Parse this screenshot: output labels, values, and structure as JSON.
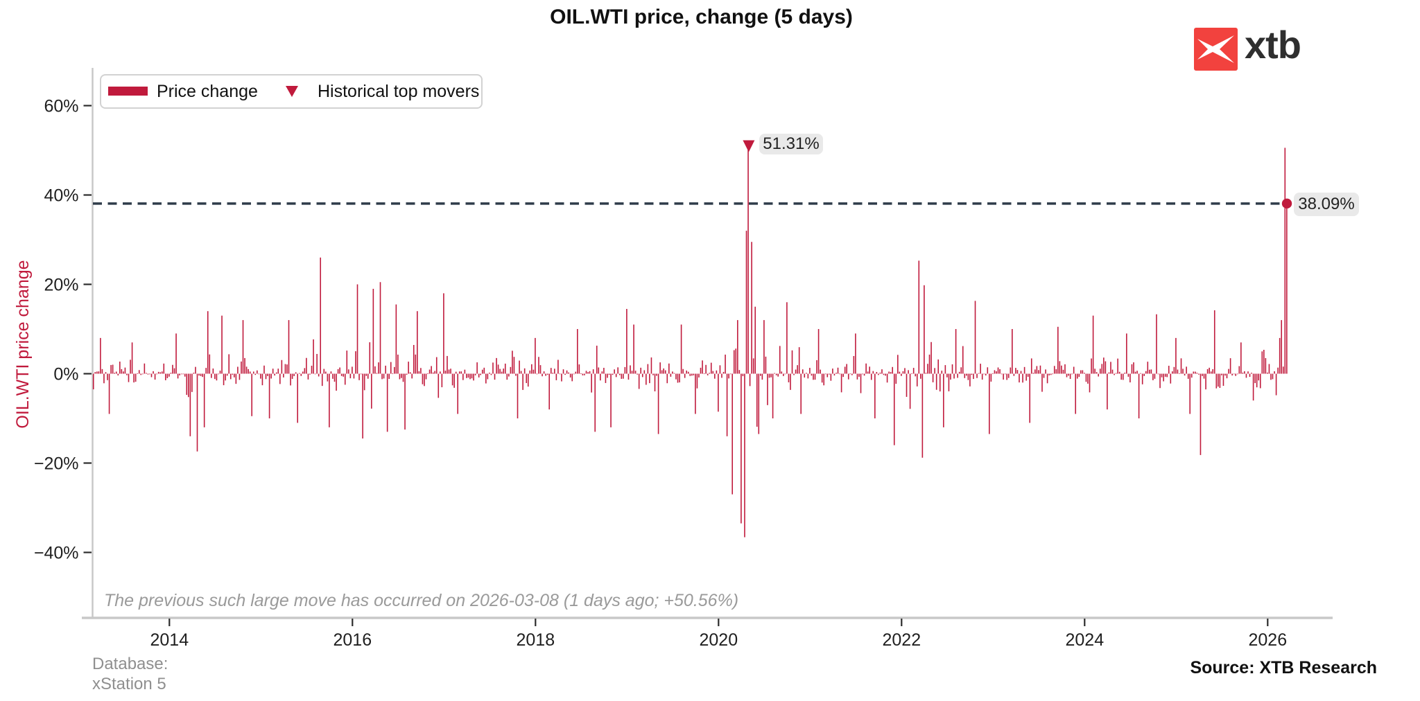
{
  "logo": {
    "brand": "xtb",
    "square_color": "#f2423e",
    "text_color": "#2f2f2f"
  },
  "footer": {
    "database_line1": "Database:",
    "database_line2": "xStation 5",
    "source": "Source: XTB Research"
  },
  "chart_data": {
    "type": "bar",
    "title": "OIL.WTI price, change (5 days)",
    "ylabel": "OIL.WTI price change",
    "xlabel": "",
    "series_name": "Price change",
    "top_movers_name": "Historical top movers",
    "unit": "%",
    "grid": "off",
    "legend_position": "upper-left",
    "x_ticks": [
      2014,
      2016,
      2018,
      2020,
      2022,
      2024,
      2026
    ],
    "y_ticks": [
      {
        "v": 60,
        "label": "60%"
      },
      {
        "v": 40,
        "label": "40%"
      },
      {
        "v": 20,
        "label": "20%"
      },
      {
        "v": 0,
        "label": "0%"
      },
      {
        "v": -20,
        "label": "−20%"
      },
      {
        "v": -40,
        "label": "−40%"
      }
    ],
    "x_range_years": [
      2013.17,
      2026.22
    ],
    "ylim": [
      -55,
      68
    ],
    "top_mover_marker": {
      "x": 2020.33,
      "value": 51.31,
      "label": "51.31%"
    },
    "current_point": {
      "x": 2026.21,
      "value": 38.09,
      "label": "38.09%"
    },
    "reference_line": {
      "value": 38.09,
      "style": "dashed"
    },
    "note": "The previous such large move has occurred on 2026-03-08 (1 days ago; +50.56%)",
    "previous_large_move": {
      "date": "2026-03-08",
      "days_ago": 1,
      "value_pct": 50.56
    },
    "key_points": [
      [
        2013.25,
        8
      ],
      [
        2013.35,
        -9
      ],
      [
        2013.6,
        7
      ],
      [
        2014.07,
        9
      ],
      [
        2014.23,
        -14
      ],
      [
        2014.3,
        -17.4
      ],
      [
        2014.38,
        -12
      ],
      [
        2014.42,
        14
      ],
      [
        2014.57,
        13
      ],
      [
        2014.8,
        12
      ],
      [
        2014.9,
        -9.5
      ],
      [
        2015.1,
        -10
      ],
      [
        2015.3,
        12
      ],
      [
        2015.4,
        -11
      ],
      [
        2015.66,
        26
      ],
      [
        2015.74,
        -12
      ],
      [
        2016.05,
        20
      ],
      [
        2016.12,
        -14.5
      ],
      [
        2016.22,
        19
      ],
      [
        2016.3,
        20.5
      ],
      [
        2016.38,
        -13
      ],
      [
        2016.48,
        15.5
      ],
      [
        2016.58,
        -12.5
      ],
      [
        2016.7,
        14
      ],
      [
        2017.0,
        18
      ],
      [
        2017.15,
        -9
      ],
      [
        2017.8,
        -10
      ],
      [
        2018.0,
        8
      ],
      [
        2018.15,
        -8
      ],
      [
        2018.45,
        10
      ],
      [
        2018.65,
        -13
      ],
      [
        2018.82,
        -12
      ],
      [
        2019.0,
        14.5
      ],
      [
        2019.08,
        11
      ],
      [
        2019.35,
        -13.5
      ],
      [
        2019.6,
        11
      ],
      [
        2019.75,
        -9
      ],
      [
        2020.0,
        -8.5
      ],
      [
        2020.1,
        -14
      ],
      [
        2020.16,
        -27
      ],
      [
        2020.2,
        12
      ],
      [
        2020.24,
        -33.5
      ],
      [
        2020.28,
        -36.6
      ],
      [
        2020.31,
        32
      ],
      [
        2020.33,
        51.31
      ],
      [
        2020.36,
        29.5
      ],
      [
        2020.4,
        15
      ],
      [
        2020.44,
        -13.5
      ],
      [
        2020.5,
        12
      ],
      [
        2020.6,
        -10
      ],
      [
        2020.75,
        16
      ],
      [
        2020.9,
        -9
      ],
      [
        2021.1,
        10
      ],
      [
        2021.5,
        9
      ],
      [
        2021.7,
        -10
      ],
      [
        2021.92,
        -16
      ],
      [
        2022.19,
        25.3
      ],
      [
        2022.22,
        -18.8
      ],
      [
        2022.25,
        19.8
      ],
      [
        2022.45,
        -12
      ],
      [
        2022.6,
        10
      ],
      [
        2022.8,
        16.3
      ],
      [
        2022.95,
        -13.5
      ],
      [
        2023.2,
        10
      ],
      [
        2023.4,
        -11
      ],
      [
        2023.7,
        10.5
      ],
      [
        2023.9,
        -9
      ],
      [
        2024.1,
        13
      ],
      [
        2024.25,
        -8
      ],
      [
        2024.45,
        9
      ],
      [
        2024.6,
        -10
      ],
      [
        2024.78,
        13.3
      ],
      [
        2025.0,
        8
      ],
      [
        2025.15,
        -9
      ],
      [
        2025.27,
        -18.2
      ],
      [
        2025.42,
        14.2
      ],
      [
        2025.7,
        7
      ],
      [
        2025.85,
        -6
      ],
      [
        2026.13,
        8
      ],
      [
        2026.16,
        12
      ],
      [
        2026.19,
        50.56
      ],
      [
        2026.21,
        38.09
      ]
    ],
    "noise_envelope": [
      {
        "from": 2013.17,
        "to": 2014.2,
        "amp": 5
      },
      {
        "from": 2014.2,
        "to": 2015.0,
        "amp": 6.5
      },
      {
        "from": 2015.0,
        "to": 2015.9,
        "amp": 7
      },
      {
        "from": 2015.9,
        "to": 2016.8,
        "amp": 9
      },
      {
        "from": 2016.8,
        "to": 2017.3,
        "amp": 6
      },
      {
        "from": 2017.3,
        "to": 2018.3,
        "amp": 4.5
      },
      {
        "from": 2018.3,
        "to": 2019.3,
        "amp": 6
      },
      {
        "from": 2019.3,
        "to": 2020.05,
        "amp": 6.5
      },
      {
        "from": 2020.05,
        "to": 2020.45,
        "amp": 12
      },
      {
        "from": 2020.45,
        "to": 2021.2,
        "amp": 7.5
      },
      {
        "from": 2021.2,
        "to": 2022.1,
        "amp": 6.5
      },
      {
        "from": 2022.1,
        "to": 2022.9,
        "amp": 8
      },
      {
        "from": 2022.9,
        "to": 2023.8,
        "amp": 6
      },
      {
        "from": 2023.8,
        "to": 2024.9,
        "amp": 6.5
      },
      {
        "from": 2024.9,
        "to": 2025.6,
        "amp": 6
      },
      {
        "from": 2025.6,
        "to": 2026.05,
        "amp": 5
      },
      {
        "from": 2026.05,
        "to": 2026.22,
        "amp": 7
      }
    ],
    "sample_step_years": 0.019231,
    "noise_seed": 987654321,
    "colors": {
      "bar": "#c01a3c",
      "reference_line": "#2f3c4a",
      "marker": "#c01a3c",
      "label_pill_bg": "#e9e9e9",
      "axis_spine": "#c8c8c8",
      "tick": "#2b2b2b",
      "text": "#1f1f1f",
      "note_gray": "#9a9a9a",
      "footer_gray": "#8f8f8f"
    }
  }
}
